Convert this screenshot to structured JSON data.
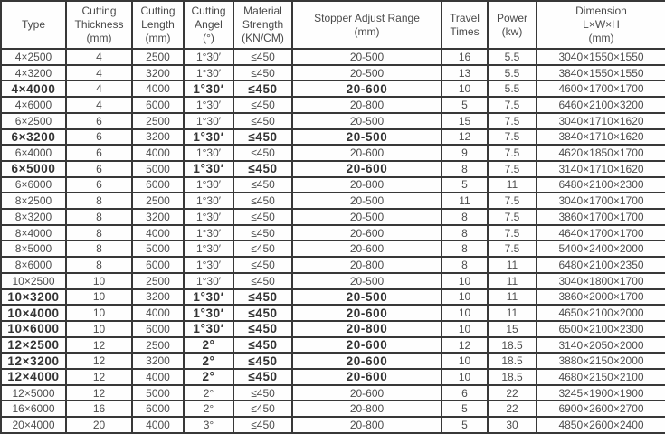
{
  "colors": {
    "border": "#383838",
    "text": "#4d4d4d",
    "text_bold": "#333333",
    "background": "#ffffff"
  },
  "table": {
    "name": "cutting-machine-specification-table",
    "columns": [
      {
        "key": "type",
        "label": "Type"
      },
      {
        "key": "thickness",
        "label": "Cutting\nThickness\n(mm)"
      },
      {
        "key": "length",
        "label": "Cutting\nLength\n(mm)"
      },
      {
        "key": "angle",
        "label": "Cutting\nAngel\n(°)"
      },
      {
        "key": "strength",
        "label": "Material\nStrength\n(KN/CM)"
      },
      {
        "key": "stopper",
        "label": "Stopper Adjust Range\n(mm)"
      },
      {
        "key": "travel",
        "label": "Travel\nTimes"
      },
      {
        "key": "power",
        "label": "Power\n(kw)"
      },
      {
        "key": "dimension",
        "label": "Dimension\nL×W×H\n(mm)"
      }
    ],
    "rows": [
      {
        "type": "4×2500",
        "thickness": "4",
        "length": "2500",
        "angle": "1°30′",
        "strength": "≤450",
        "stopper": "20-500",
        "travel": "16",
        "power": "5.5",
        "dimension": "3040×1550×1550",
        "bold": false
      },
      {
        "type": "4×3200",
        "thickness": "4",
        "length": "3200",
        "angle": "1°30′",
        "strength": "≤450",
        "stopper": "20-500",
        "travel": "13",
        "power": "5.5",
        "dimension": "3840×1550×1550",
        "bold": false
      },
      {
        "type": "4×4000",
        "thickness": "4",
        "length": "4000",
        "angle": "1°30′",
        "strength": "≤450",
        "stopper": "20-600",
        "travel": "10",
        "power": "5.5",
        "dimension": "4600×1700×1700",
        "bold": true
      },
      {
        "type": "4×6000",
        "thickness": "4",
        "length": "6000",
        "angle": "1°30′",
        "strength": "≤450",
        "stopper": "20-800",
        "travel": "5",
        "power": "7.5",
        "dimension": "6460×2100×3200",
        "bold": false
      },
      {
        "type": "6×2500",
        "thickness": "6",
        "length": "2500",
        "angle": "1°30′",
        "strength": "≤450",
        "stopper": "20-500",
        "travel": "15",
        "power": "7.5",
        "dimension": "3040×1710×1620",
        "bold": false
      },
      {
        "type": "6×3200",
        "thickness": "6",
        "length": "3200",
        "angle": "1°30′",
        "strength": "≤450",
        "stopper": "20-500",
        "travel": "12",
        "power": "7.5",
        "dimension": "3840×1710×1620",
        "bold": true
      },
      {
        "type": "6×4000",
        "thickness": "6",
        "length": "4000",
        "angle": "1°30′",
        "strength": "≤450",
        "stopper": "20-600",
        "travel": "9",
        "power": "7.5",
        "dimension": "4620×1850×1700",
        "bold": false
      },
      {
        "type": "6×5000",
        "thickness": "6",
        "length": "5000",
        "angle": "1°30′",
        "strength": "≤450",
        "stopper": "20-600",
        "travel": "8",
        "power": "7.5",
        "dimension": "3140×1710×1620",
        "bold": true
      },
      {
        "type": "6×6000",
        "thickness": "6",
        "length": "6000",
        "angle": "1°30′",
        "strength": "≤450",
        "stopper": "20-800",
        "travel": "5",
        "power": "11",
        "dimension": "6480×2100×2300",
        "bold": false
      },
      {
        "type": "8×2500",
        "thickness": "8",
        "length": "2500",
        "angle": "1°30′",
        "strength": "≤450",
        "stopper": "20-500",
        "travel": "11",
        "power": "7.5",
        "dimension": "3040×1700×1700",
        "bold": false
      },
      {
        "type": "8×3200",
        "thickness": "8",
        "length": "3200",
        "angle": "1°30′",
        "strength": "≤450",
        "stopper": "20-500",
        "travel": "8",
        "power": "7.5",
        "dimension": "3860×1700×1700",
        "bold": false
      },
      {
        "type": "8×4000",
        "thickness": "8",
        "length": "4000",
        "angle": "1°30′",
        "strength": "≤450",
        "stopper": "20-600",
        "travel": "8",
        "power": "7.5",
        "dimension": "4640×1700×1700",
        "bold": false
      },
      {
        "type": "8×5000",
        "thickness": "8",
        "length": "5000",
        "angle": "1°30′",
        "strength": "≤450",
        "stopper": "20-600",
        "travel": "8",
        "power": "7.5",
        "dimension": "5400×2400×2000",
        "bold": false
      },
      {
        "type": "8×6000",
        "thickness": "8",
        "length": "6000",
        "angle": "1°30′",
        "strength": "≤450",
        "stopper": "20-800",
        "travel": "8",
        "power": "11",
        "dimension": "6480×2100×2350",
        "bold": false
      },
      {
        "type": "10×2500",
        "thickness": "10",
        "length": "2500",
        "angle": "1°30′",
        "strength": "≤450",
        "stopper": "20-500",
        "travel": "10",
        "power": "11",
        "dimension": "3040×1800×1700",
        "bold": false
      },
      {
        "type": "10×3200",
        "thickness": "10",
        "length": "3200",
        "angle": "1°30′",
        "strength": "≤450",
        "stopper": "20-500",
        "travel": "10",
        "power": "11",
        "dimension": "3860×2000×1700",
        "bold": true
      },
      {
        "type": "10×4000",
        "thickness": "10",
        "length": "4000",
        "angle": "1°30′",
        "strength": "≤450",
        "stopper": "20-600",
        "travel": "10",
        "power": "11",
        "dimension": "4650×2100×2000",
        "bold": true
      },
      {
        "type": "10×6000",
        "thickness": "10",
        "length": "6000",
        "angle": "1°30′",
        "strength": "≤450",
        "stopper": "20-800",
        "travel": "10",
        "power": "15",
        "dimension": "6500×2100×2300",
        "bold": true
      },
      {
        "type": "12×2500",
        "thickness": "12",
        "length": "2500",
        "angle": "2°",
        "strength": "≤450",
        "stopper": "20-600",
        "travel": "12",
        "power": "18.5",
        "dimension": "3140×2050×2000",
        "bold": true
      },
      {
        "type": "12×3200",
        "thickness": "12",
        "length": "3200",
        "angle": "2°",
        "strength": "≤450",
        "stopper": "20-600",
        "travel": "10",
        "power": "18.5",
        "dimension": "3880×2150×2000",
        "bold": true
      },
      {
        "type": "12×4000",
        "thickness": "12",
        "length": "4000",
        "angle": "2°",
        "strength": "≤450",
        "stopper": "20-600",
        "travel": "10",
        "power": "18.5",
        "dimension": "4680×2150×2100",
        "bold": true
      },
      {
        "type": "12×5000",
        "thickness": "12",
        "length": "5000",
        "angle": "2°",
        "strength": "≤450",
        "stopper": "20-600",
        "travel": "6",
        "power": "22",
        "dimension": "3245×1900×1900",
        "bold": false
      },
      {
        "type": "16×6000",
        "thickness": "16",
        "length": "6000",
        "angle": "2°",
        "strength": "≤450",
        "stopper": "20-800",
        "travel": "5",
        "power": "22",
        "dimension": "6900×2600×2700",
        "bold": false
      },
      {
        "type": "20×4000",
        "thickness": "20",
        "length": "4000",
        "angle": "3°",
        "strength": "≤450",
        "stopper": "20-800",
        "travel": "5",
        "power": "30",
        "dimension": "4850×2600×2400",
        "bold": false
      }
    ]
  }
}
